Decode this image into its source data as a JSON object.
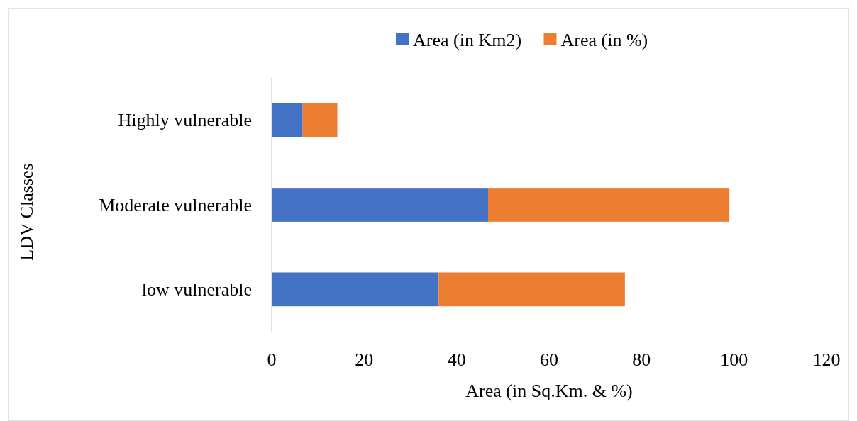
{
  "chart_data": {
    "type": "bar",
    "orientation": "horizontal",
    "stacked": true,
    "categories": [
      "Highly vulnerable",
      "Moderate vulnerable",
      "low vulnerable"
    ],
    "xlabel": "Area (in Sq.Km. & %)",
    "ylabel": "LDV Classes",
    "xlim": [
      0,
      120
    ],
    "xticks": [
      0,
      20,
      40,
      60,
      80,
      100,
      120
    ],
    "grid": false,
    "legend": "top",
    "series": [
      {
        "name": "Area (in Km2)",
        "color": "#4472c4",
        "values": [
          6.7,
          46.8,
          36.1
        ]
      },
      {
        "name": "Area (in %)",
        "color": "#ed7d31",
        "values": [
          7.5,
          52.2,
          40.3
        ]
      }
    ]
  }
}
